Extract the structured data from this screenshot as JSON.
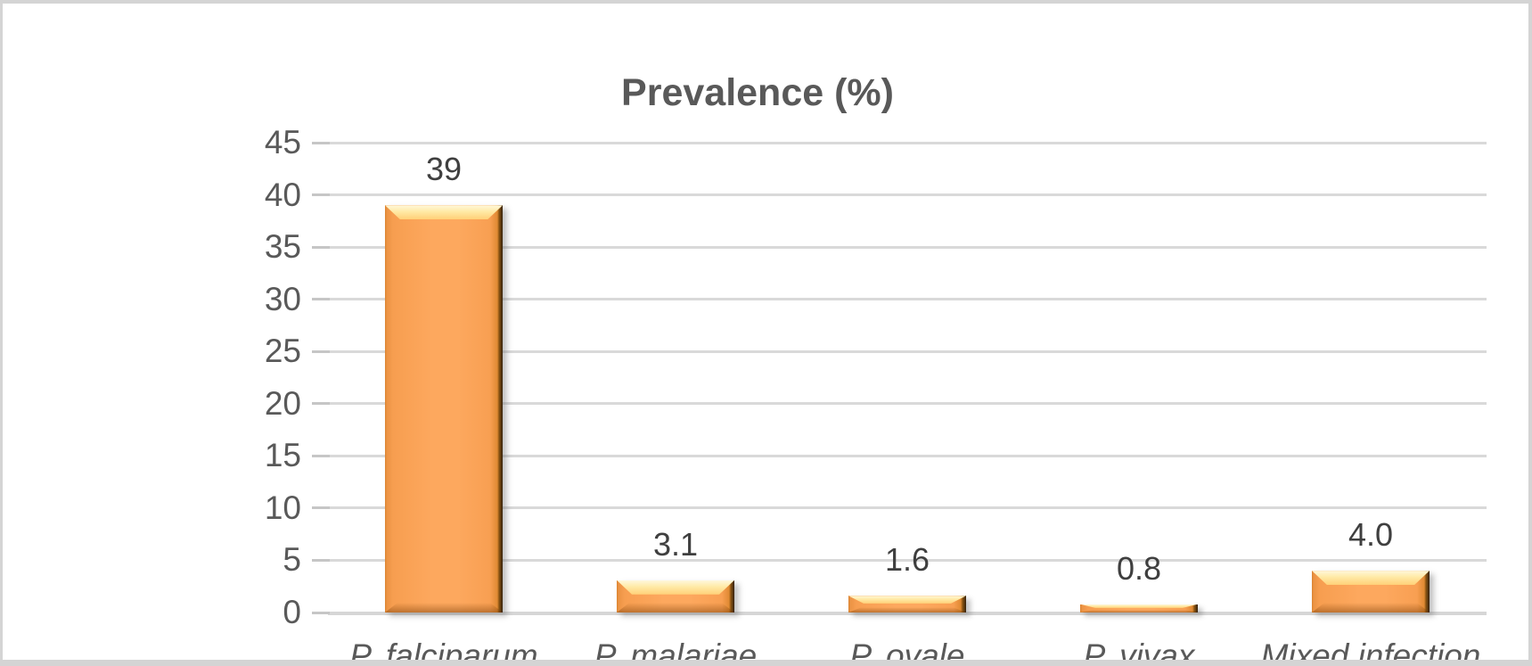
{
  "chart_data": {
    "type": "bar",
    "title": "Prevalence (%)",
    "categories": [
      "P. falciparum",
      "P. malariae",
      "P. ovale",
      "P. vivax",
      "Mixed infection"
    ],
    "values": [
      39,
      3.1,
      1.6,
      0.8,
      4
    ],
    "value_labels": [
      "39",
      "3.1",
      "1.6",
      "0.8",
      "4.0"
    ],
    "yticks": [
      45,
      40,
      35,
      30,
      25,
      20,
      15,
      10,
      5,
      0
    ],
    "ylim": [
      0,
      45
    ],
    "ytick_step": 5,
    "grid": true,
    "legend_position": "none",
    "xlabel": "",
    "ylabel": "",
    "styles": {
      "bar_fill": "#FDA85E",
      "bar_bevel_highlight": "#FFEFAF",
      "bar_edge_dark": "#33200A",
      "gridline_color": "#D9D9D9",
      "title_color": "#595959",
      "tick_label_color": "#595959",
      "data_label_color": "#3F3F3F",
      "frame_border_color": "#D4D4D4",
      "background": "#FFFFFF"
    }
  }
}
